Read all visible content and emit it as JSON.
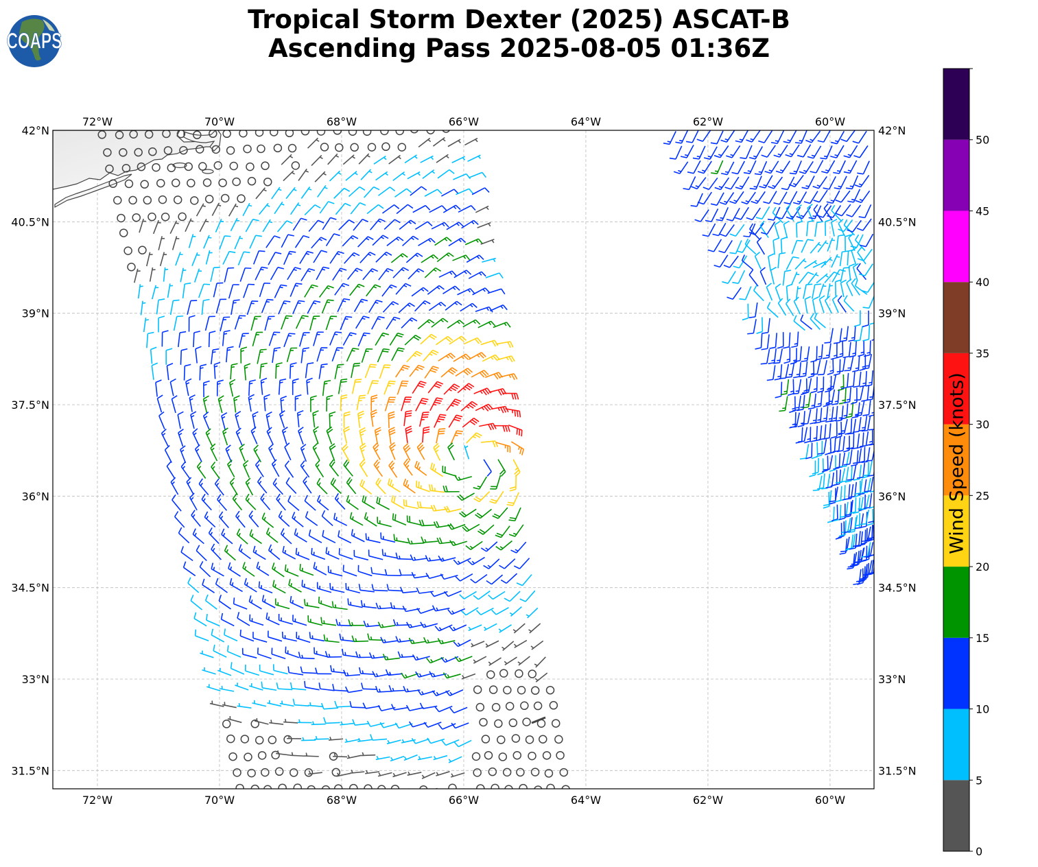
{
  "title": {
    "line1": "Tropical Storm Dexter (2025) ASCAT-B",
    "line2": "Ascending Pass 2025-08-05 01:36Z"
  },
  "logo": {
    "text": "COAPS"
  },
  "map": {
    "extent": {
      "lon": [
        -72.73,
        -59.28
      ],
      "lat": [
        31.2,
        42.0
      ]
    },
    "lon_ticks": [
      {
        "value": -72,
        "label": "72°W"
      },
      {
        "value": -70,
        "label": "70°W"
      },
      {
        "value": -68,
        "label": "68°W"
      },
      {
        "value": -66,
        "label": "66°W"
      },
      {
        "value": -64,
        "label": "64°W"
      },
      {
        "value": -62,
        "label": "62°W"
      },
      {
        "value": -60,
        "label": "60°W"
      }
    ],
    "lat_ticks": [
      {
        "value": 42,
        "label": "42°N"
      },
      {
        "value": 40.5,
        "label": "40.5°N"
      },
      {
        "value": 39,
        "label": "39°N"
      },
      {
        "value": 37.5,
        "label": "37.5°N"
      },
      {
        "value": 36,
        "label": "36°N"
      },
      {
        "value": 34.5,
        "label": "34.5°N"
      },
      {
        "value": 33,
        "label": "33°N"
      },
      {
        "value": 31.5,
        "label": "31.5°N"
      }
    ],
    "grid": true
  },
  "chart_data": {
    "type": "wind-barbs",
    "storm_center": {
      "lon": -65.84,
      "lat": 36.6
    },
    "max_wind_knots_approx": 30,
    "swaths": [
      {
        "corners": [
          [
            -72.02,
            42.45
          ],
          [
            -66.12,
            42.56
          ],
          [
            -64.33,
            31.2
          ],
          [
            -69.66,
            31.2
          ]
        ]
      },
      {
        "corners": [
          [
            -62.53,
            42.0
          ],
          [
            -59.0,
            42.0
          ],
          [
            -59.0,
            35.2
          ],
          [
            -59.49,
            34.8
          ]
        ]
      }
    ]
  },
  "colorbar": {
    "label": "Wind Speed (knots)",
    "range": [
      0,
      55
    ],
    "bins": [
      {
        "from": 0,
        "to": 5,
        "color": "#555555"
      },
      {
        "from": 5,
        "to": 10,
        "color": "#00bfff"
      },
      {
        "from": 10,
        "to": 15,
        "color": "#0033ff"
      },
      {
        "from": 15,
        "to": 20,
        "color": "#009400"
      },
      {
        "from": 20,
        "to": 25,
        "color": "#ffd414"
      },
      {
        "from": 25,
        "to": 30,
        "color": "#ff8c0a"
      },
      {
        "from": 30,
        "to": 35,
        "color": "#ff1212"
      },
      {
        "from": 35,
        "to": 40,
        "color": "#7f3d28"
      },
      {
        "from": 40,
        "to": 45,
        "color": "#ff00ff"
      },
      {
        "from": 45,
        "to": 50,
        "color": "#8600b4"
      },
      {
        "from": 50,
        "to": 55,
        "color": "#2d0056"
      }
    ],
    "ticks": [
      "0",
      "5",
      "10",
      "15",
      "20",
      "25",
      "30",
      "35",
      "40",
      "45",
      "50"
    ]
  }
}
